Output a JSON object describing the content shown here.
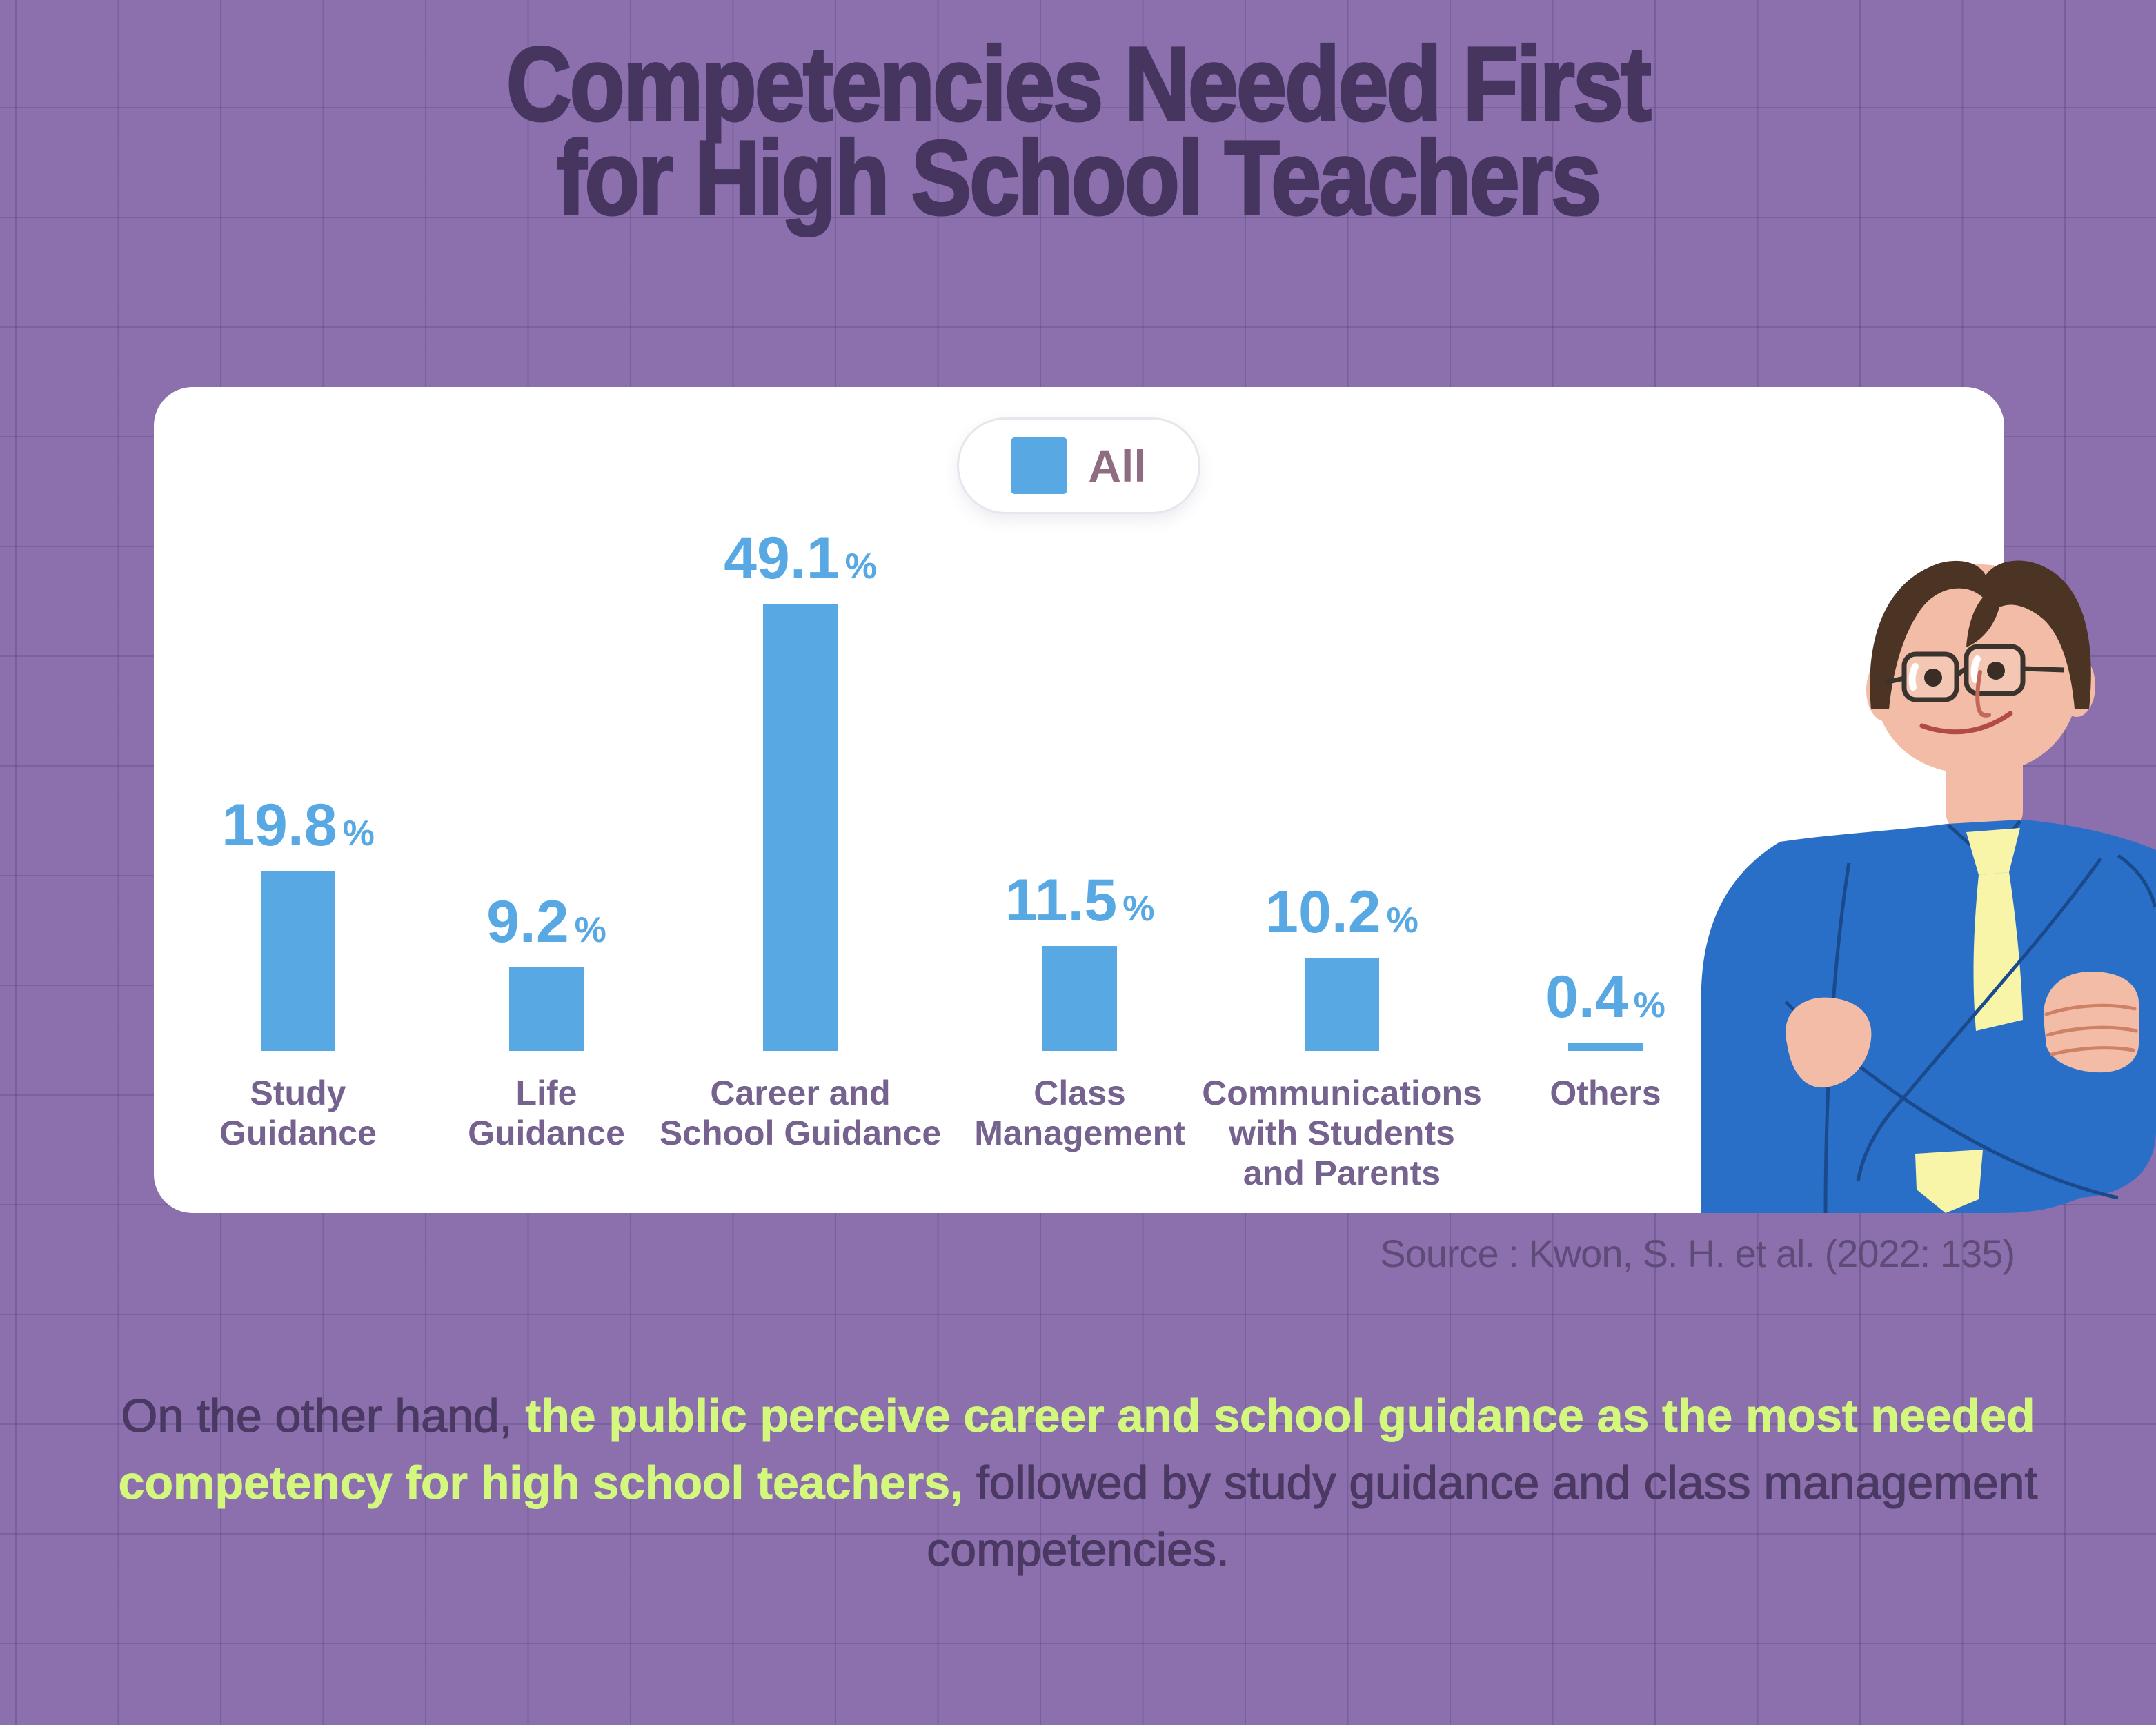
{
  "title": {
    "line1": "Competencies Needed First",
    "line2": "for High School Teachers"
  },
  "legend": {
    "label": "All"
  },
  "chart_data": {
    "type": "bar",
    "title": "Competencies Needed First for High School Teachers",
    "unit": "%",
    "legend_entries": [
      "All"
    ],
    "legend_position": "top-center",
    "grid": false,
    "ylim": [
      0,
      55
    ],
    "bar_color": "#58a9e3",
    "categories": [
      "Study Guidance",
      "Life Guidance",
      "Career and School Guidance",
      "Class Management",
      "Communications with Students and Parents",
      "Others"
    ],
    "category_label_lines": [
      [
        "Study",
        "Guidance"
      ],
      [
        "Life",
        "Guidance"
      ],
      [
        "Career and",
        "School Guidance"
      ],
      [
        "Class",
        "Management"
      ],
      [
        "Communications",
        "with Students",
        "and Parents"
      ],
      [
        "Others"
      ]
    ],
    "values": [
      19.8,
      9.2,
      49.1,
      11.5,
      10.2,
      0.4
    ]
  },
  "source": {
    "text": "Source : Kwon, S. H. et al. (2022: 135)"
  },
  "caption": {
    "part1": "On the other hand, ",
    "highlight": "the public perceive career and school guidance as the most needed competency for high school teachers,",
    "part2": " followed by study guidance and class management competencies."
  },
  "colors": {
    "background": "#8b70ad",
    "card": "#ffffff",
    "title_text": "#45355f",
    "bar": "#58a9e3",
    "category_label": "#75628e",
    "legend_label": "#8e6d83",
    "source_text": "#5e4b78",
    "caption_text": "#4a3962",
    "caption_highlight": "#d4f77e"
  }
}
